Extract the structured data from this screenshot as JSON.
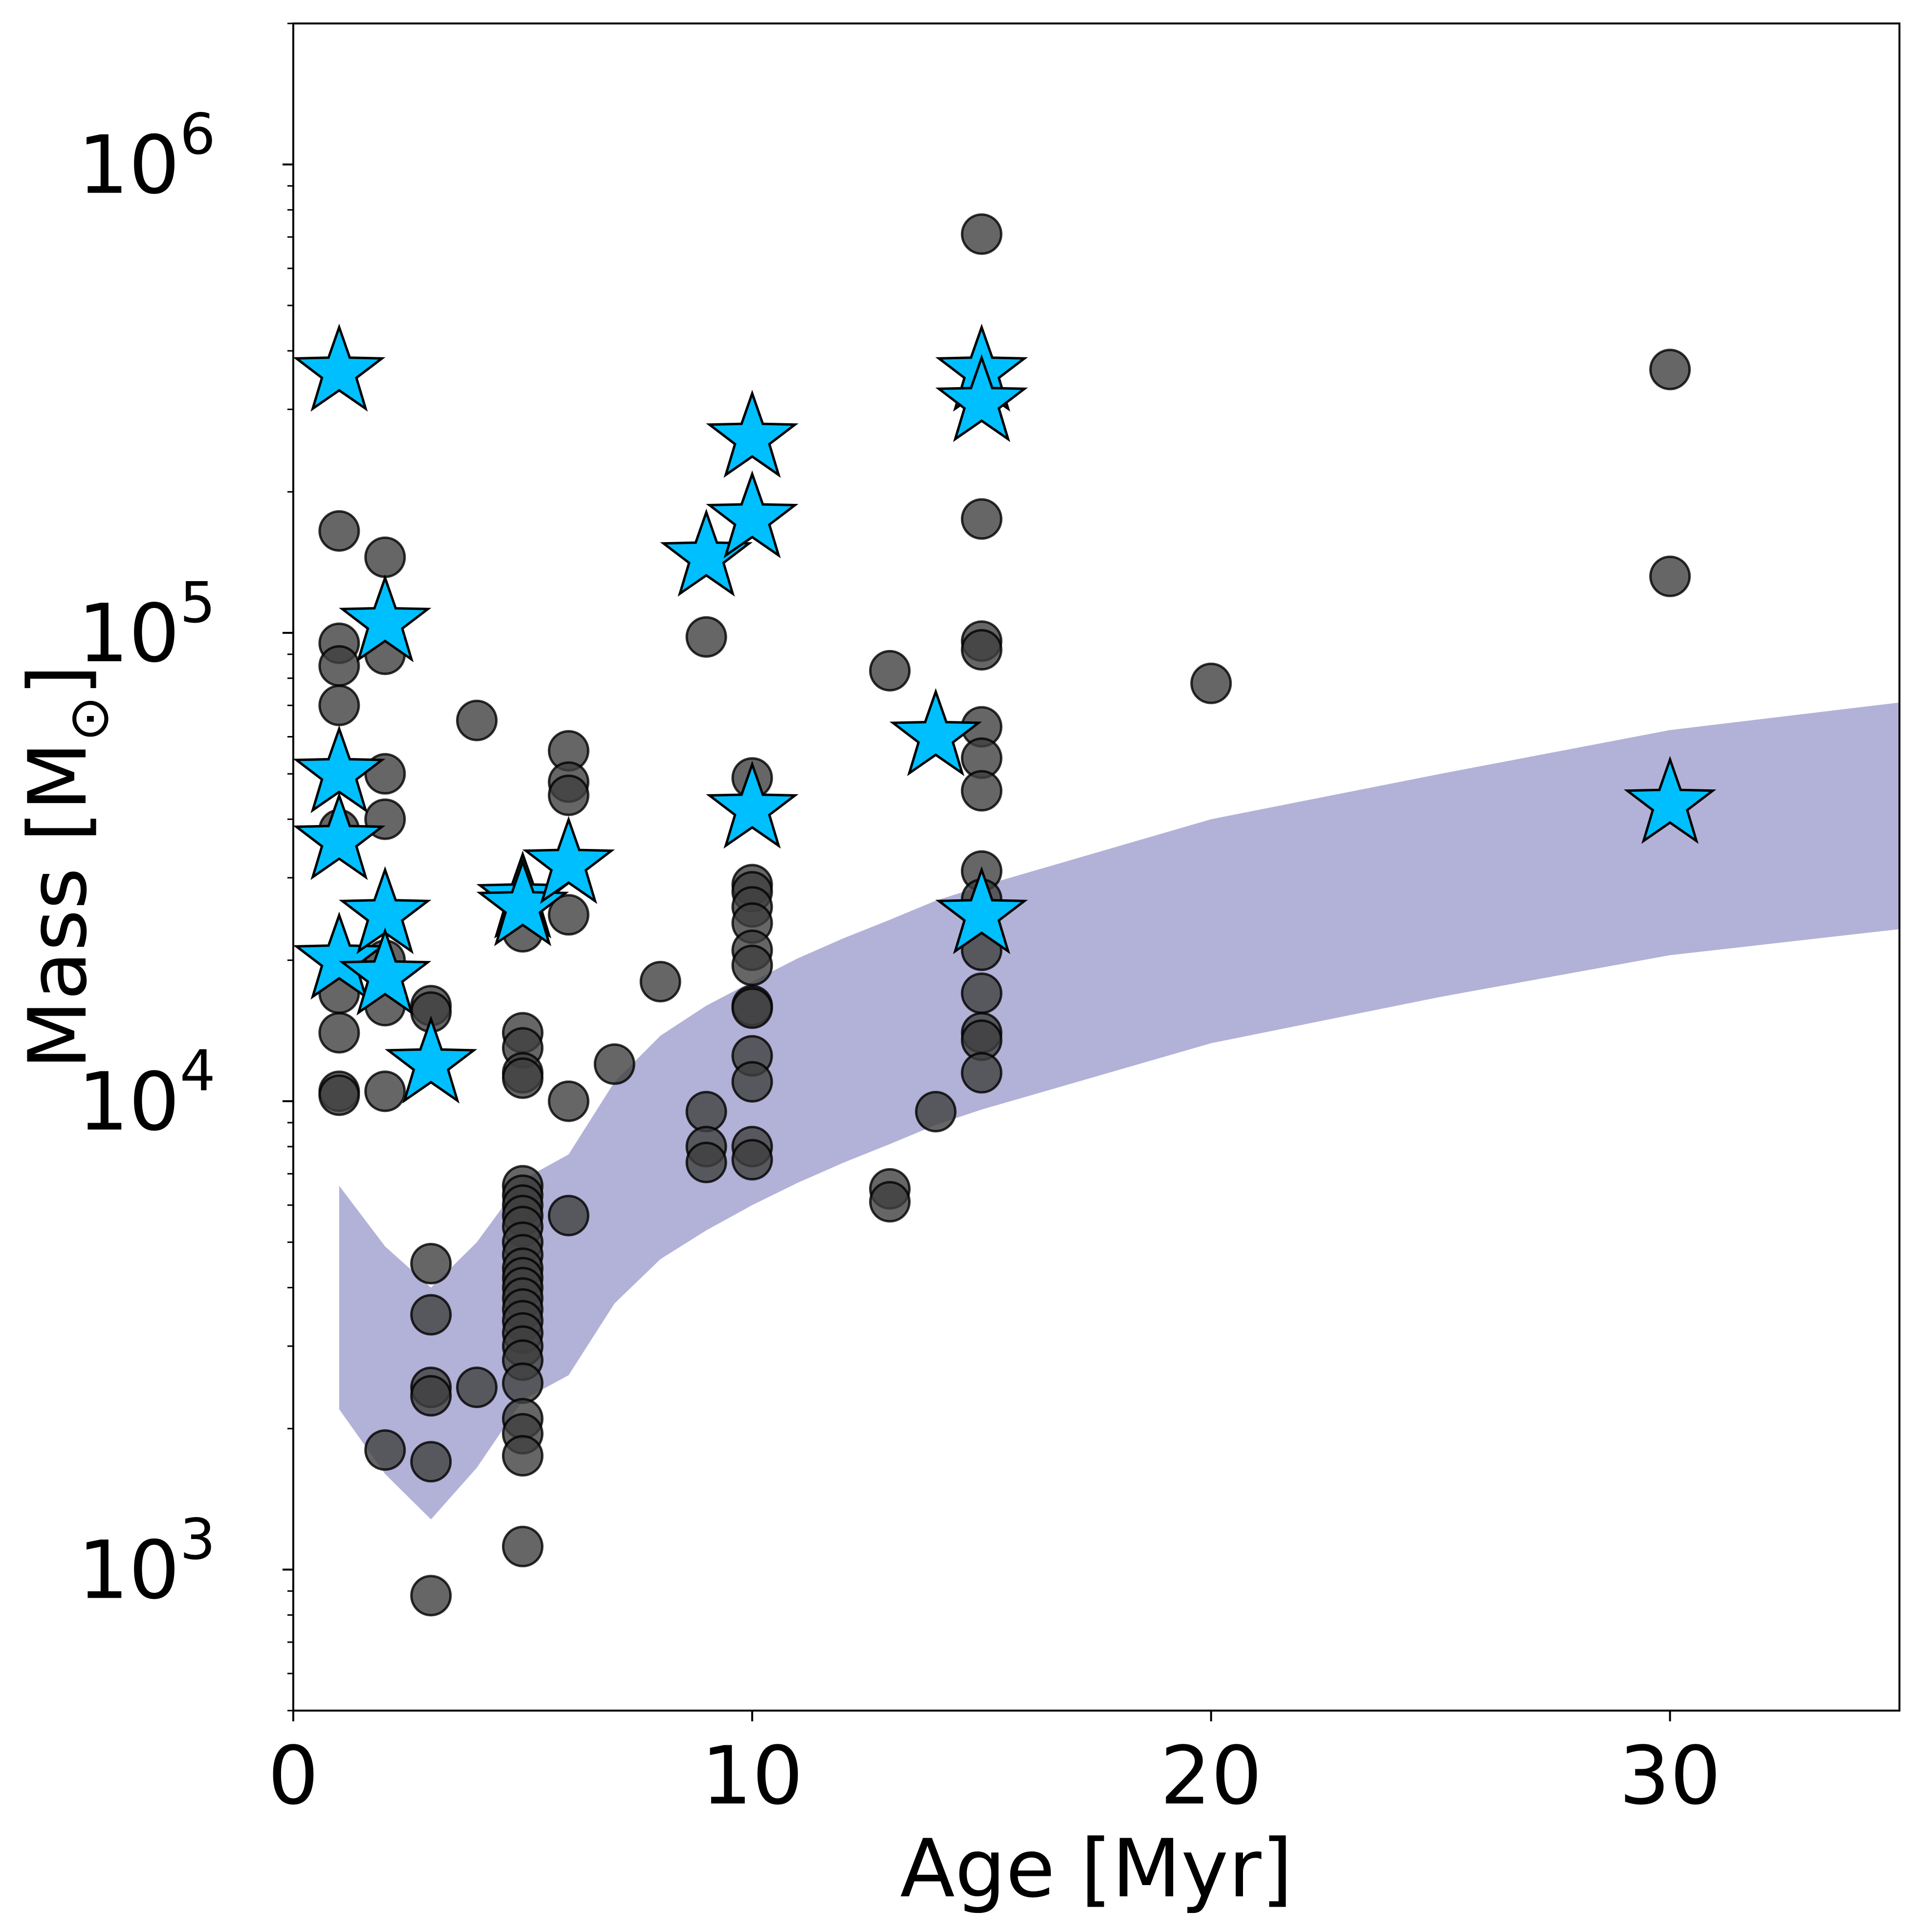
{
  "chart_data": {
    "type": "scatter",
    "xlabel": "Age [Myr]",
    "ylabel_main": "Mass [M",
    "ylabel_sub": "⊙",
    "ylabel_end": "]",
    "xlim": [
      0,
      35
    ],
    "ylim": [
      500,
      2000000
    ],
    "yscale": "log",
    "grid": false,
    "x_ticks": [
      {
        "value": 0,
        "label": "0"
      },
      {
        "value": 10,
        "label": "10"
      },
      {
        "value": 20,
        "label": "20"
      },
      {
        "value": 30,
        "label": "30"
      }
    ],
    "y_ticks": [
      {
        "value": 1000,
        "base": "10",
        "exp": "3"
      },
      {
        "value": 10000,
        "base": "10",
        "exp": "4"
      },
      {
        "value": 100000,
        "base": "10",
        "exp": "5"
      },
      {
        "value": 1000000,
        "base": "10",
        "exp": "6"
      }
    ],
    "colors": {
      "band": "#b2b2d8",
      "circles": "#404040",
      "circle_edge": "#000000",
      "stars": "#00bfff",
      "star_edge": "#000000"
    },
    "band": {
      "x": [
        1,
        2,
        3,
        4,
        5,
        6,
        7,
        8,
        9,
        10,
        11,
        12,
        13,
        14,
        15,
        20,
        25,
        30,
        35
      ],
      "lower": [
        2200,
        1600,
        1280,
        1650,
        2300,
        2600,
        3700,
        4600,
        5300,
        6000,
        6700,
        7400,
        8100,
        8900,
        9600,
        13300,
        16700,
        20500,
        23300
      ],
      "upper": [
        6600,
        4900,
        4000,
        5000,
        6800,
        7700,
        11000,
        13800,
        16000,
        18000,
        20200,
        22300,
        24400,
        26800,
        28800,
        40000,
        50000,
        62000,
        71000
      ]
    },
    "circles": [
      [
        1,
        165000
      ],
      [
        1,
        95000
      ],
      [
        1,
        85000
      ],
      [
        1,
        70000
      ],
      [
        1,
        38000
      ],
      [
        1,
        17000
      ],
      [
        1,
        14000
      ],
      [
        1,
        10500
      ],
      [
        1,
        10300
      ],
      [
        2,
        145000
      ],
      [
        2,
        90000
      ],
      [
        2,
        50000
      ],
      [
        2,
        40000
      ],
      [
        2,
        20000
      ],
      [
        2,
        16000
      ],
      [
        2,
        10500
      ],
      [
        2,
        1800
      ],
      [
        3,
        16000
      ],
      [
        3,
        15500
      ],
      [
        3,
        4500
      ],
      [
        3,
        3500
      ],
      [
        3,
        2450
      ],
      [
        3,
        2350
      ],
      [
        3,
        1700
      ],
      [
        3,
        880
      ],
      [
        4,
        65000
      ],
      [
        4,
        2450
      ],
      [
        5,
        23000
      ],
      [
        5,
        14000
      ],
      [
        5,
        13000
      ],
      [
        5,
        11500
      ],
      [
        5,
        11200
      ],
      [
        5,
        6600
      ],
      [
        5,
        6300
      ],
      [
        5,
        6000
      ],
      [
        5,
        5700
      ],
      [
        5,
        5400
      ],
      [
        5,
        5000
      ],
      [
        5,
        4700
      ],
      [
        5,
        4400
      ],
      [
        5,
        4200
      ],
      [
        5,
        4000
      ],
      [
        5,
        3800
      ],
      [
        5,
        3600
      ],
      [
        5,
        3400
      ],
      [
        5,
        3200
      ],
      [
        5,
        3000
      ],
      [
        5,
        2800
      ],
      [
        5,
        2500
      ],
      [
        5,
        2100
      ],
      [
        5,
        1950
      ],
      [
        5,
        1750
      ],
      [
        5,
        1120
      ],
      [
        6,
        56000
      ],
      [
        6,
        48000
      ],
      [
        6,
        45000
      ],
      [
        6,
        25000
      ],
      [
        6,
        10000
      ],
      [
        6,
        5700
      ],
      [
        7,
        12000
      ],
      [
        8,
        18000
      ],
      [
        9,
        98000
      ],
      [
        9,
        9500
      ],
      [
        9,
        8000
      ],
      [
        9,
        7400
      ],
      [
        10,
        49000
      ],
      [
        10,
        29000
      ],
      [
        10,
        28000
      ],
      [
        10,
        26000
      ],
      [
        10,
        24000
      ],
      [
        10,
        21000
      ],
      [
        10,
        19500
      ],
      [
        10,
        16000
      ],
      [
        10,
        15800
      ],
      [
        10,
        12500
      ],
      [
        10,
        11000
      ],
      [
        10,
        8000
      ],
      [
        10,
        7500
      ],
      [
        13,
        83000
      ],
      [
        13,
        6500
      ],
      [
        13,
        6100
      ],
      [
        14,
        9500
      ],
      [
        15,
        710000
      ],
      [
        15,
        175000
      ],
      [
        15,
        96000
      ],
      [
        15,
        92000
      ],
      [
        15,
        63000
      ],
      [
        15,
        54000
      ],
      [
        15,
        46000
      ],
      [
        15,
        31000
      ],
      [
        15,
        27000
      ],
      [
        15,
        21000
      ],
      [
        15,
        17000
      ],
      [
        15,
        14000
      ],
      [
        15,
        13500
      ],
      [
        15,
        11500
      ],
      [
        20,
        78000
      ],
      [
        30,
        365000
      ],
      [
        30,
        132000
      ]
    ],
    "stars": [
      [
        1,
        360000
      ],
      [
        1,
        50000
      ],
      [
        1,
        36000
      ],
      [
        1,
        20000
      ],
      [
        2,
        105000
      ],
      [
        2,
        25000
      ],
      [
        2,
        18500
      ],
      [
        3,
        12000
      ],
      [
        5,
        27000
      ],
      [
        5,
        26000
      ],
      [
        6,
        32000
      ],
      [
        9,
        145000
      ],
      [
        10,
        260000
      ],
      [
        10,
        175000
      ],
      [
        10,
        42000
      ],
      [
        14,
        60000
      ],
      [
        15,
        360000
      ],
      [
        15,
        310000
      ],
      [
        15,
        25000
      ],
      [
        30,
        43000
      ]
    ]
  }
}
